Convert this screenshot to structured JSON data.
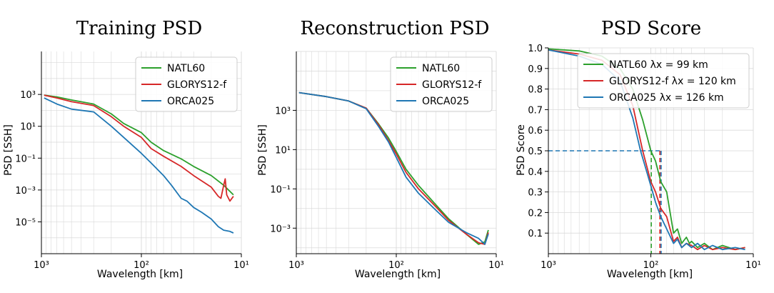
{
  "colors": {
    "natl60": "#2ca02c",
    "glorys": "#d62728",
    "orca": "#1f77b4",
    "grid": "#d9d9d9"
  },
  "chart_data": [
    {
      "type": "line",
      "title": "Training PSD",
      "xlabel": "Wavelength [km]",
      "ylabel": "PSD [SSH]",
      "x_scale": "log-reversed",
      "y_scale": "log",
      "xlim": [
        1000,
        10
      ],
      "ylim": [
        1e-07,
        500000
      ],
      "x_ticks": [
        {
          "v": 1000,
          "t": "10³"
        },
        {
          "v": 100,
          "t": "10²"
        },
        {
          "v": 10,
          "t": "10¹"
        }
      ],
      "y_ticks": [
        {
          "v": 1000,
          "t": "10³"
        },
        {
          "v": 10,
          "t": "10¹"
        },
        {
          "v": 0.1,
          "t": "10⁻¹"
        },
        {
          "v": 0.001,
          "t": "10⁻³"
        },
        {
          "v": 1e-05,
          "t": "10⁻⁵"
        }
      ],
      "grid": true,
      "legend": "top-right",
      "series": [
        {
          "name": "NATL60",
          "color_key": "natl60",
          "x": [
            940,
            700,
            500,
            300,
            200,
            150,
            100,
            80,
            60,
            40,
            30,
            20,
            15,
            12
          ],
          "y": [
            900,
            700,
            450,
            250,
            60,
            15,
            4,
            1,
            0.3,
            0.09,
            0.03,
            0.008,
            0.002,
            0.0005
          ]
        },
        {
          "name": "GLORYS12-f",
          "color_key": "glorys",
          "x": [
            940,
            700,
            500,
            300,
            200,
            150,
            100,
            80,
            60,
            40,
            30,
            20,
            17,
            16,
            15,
            14.5,
            14,
            13,
            12
          ],
          "y": [
            900,
            600,
            350,
            200,
            40,
            10,
            2,
            0.4,
            0.13,
            0.03,
            0.008,
            0.0015,
            0.0004,
            0.0003,
            0.002,
            0.005,
            0.0005,
            0.0002,
            0.0004
          ]
        },
        {
          "name": "ORCA025",
          "color_key": "orca",
          "x": [
            940,
            700,
            500,
            300,
            200,
            150,
            100,
            80,
            60,
            50,
            40,
            35,
            30,
            25,
            20,
            17,
            15,
            13,
            12
          ],
          "y": [
            600,
            250,
            120,
            80,
            10,
            2,
            0.2,
            0.05,
            0.008,
            0.002,
            0.0003,
            0.0002,
            8e-05,
            4e-05,
            1.5e-05,
            5e-06,
            3e-06,
            2.5e-06,
            2e-06
          ]
        }
      ]
    },
    {
      "type": "line",
      "title": "Reconstruction PSD",
      "xlabel": "Wavelength [km]",
      "ylabel": "PSD [SSH]",
      "x_scale": "log-reversed",
      "y_scale": "log",
      "xlim": [
        1000,
        10
      ],
      "ylim": [
        5e-05,
        1000000
      ],
      "x_ticks": [
        {
          "v": 1000,
          "t": "10³"
        },
        {
          "v": 100,
          "t": "10²"
        },
        {
          "v": 10,
          "t": "10¹"
        }
      ],
      "y_ticks": [
        {
          "v": 1000,
          "t": "10³"
        },
        {
          "v": 10,
          "t": "10¹"
        },
        {
          "v": 0.1,
          "t": "10⁻¹"
        },
        {
          "v": 0.001,
          "t": "10⁻³"
        }
      ],
      "grid": true,
      "legend": "top-right",
      "series": [
        {
          "name": "NATL60",
          "color_key": "natl60",
          "x": [
            940,
            500,
            300,
            200,
            150,
            120,
            100,
            80,
            60,
            40,
            30,
            20,
            15,
            13,
            12
          ],
          "y": [
            8000,
            5000,
            3000,
            1300,
            200,
            40,
            8,
            1,
            0.15,
            0.015,
            0.003,
            0.0005,
            0.00015,
            0.0002,
            0.0008
          ]
        },
        {
          "name": "GLORYS12-f",
          "color_key": "glorys",
          "x": [
            940,
            500,
            300,
            200,
            150,
            120,
            100,
            80,
            60,
            40,
            30,
            20,
            15,
            13,
            12
          ],
          "y": [
            8000,
            5000,
            3000,
            1300,
            180,
            30,
            6,
            0.7,
            0.1,
            0.012,
            0.0025,
            0.0005,
            0.00018,
            0.00015,
            0.0006
          ]
        },
        {
          "name": "ORCA025",
          "color_key": "orca",
          "x": [
            940,
            500,
            300,
            200,
            150,
            120,
            100,
            80,
            60,
            40,
            30,
            20,
            15,
            13,
            12
          ],
          "y": [
            8000,
            5000,
            3000,
            1200,
            150,
            25,
            4,
            0.4,
            0.06,
            0.008,
            0.002,
            0.0006,
            0.0003,
            0.00015,
            0.0005
          ]
        }
      ]
    },
    {
      "type": "line",
      "title": "PSD Score",
      "xlabel": "Wavelength [km]",
      "ylabel": "PSD Score",
      "x_scale": "log-reversed",
      "y_scale": "linear",
      "xlim": [
        1000,
        10
      ],
      "ylim": [
        0,
        1
      ],
      "x_ticks": [
        {
          "v": 1000,
          "t": "10³"
        },
        {
          "v": 100,
          "t": "10²"
        },
        {
          "v": 10,
          "t": "10¹"
        }
      ],
      "y_ticks": [
        {
          "v": 0.1,
          "t": "0.1"
        },
        {
          "v": 0.2,
          "t": "0.2"
        },
        {
          "v": 0.3,
          "t": "0.3"
        },
        {
          "v": 0.4,
          "t": "0.4"
        },
        {
          "v": 0.5,
          "t": "0.5"
        },
        {
          "v": 0.6,
          "t": "0.6"
        },
        {
          "v": 0.7,
          "t": "0.7"
        },
        {
          "v": 0.8,
          "t": "0.8"
        },
        {
          "v": 0.9,
          "t": "0.9"
        },
        {
          "v": 1.0,
          "t": "1.0"
        }
      ],
      "grid": true,
      "legend": "top-right",
      "threshold": 0.5,
      "series": [
        {
          "name": "NATL60",
          "resolution_label": "λx = 99 km",
          "resolution": 99,
          "color_key": "natl60",
          "x": [
            1000,
            500,
            300,
            200,
            150,
            120,
            100,
            90,
            80,
            70,
            60,
            55,
            50,
            45,
            42,
            40,
            35,
            30,
            25,
            20,
            15,
            12
          ],
          "y": [
            0.995,
            0.985,
            0.96,
            0.9,
            0.8,
            0.65,
            0.5,
            0.45,
            0.35,
            0.3,
            0.1,
            0.12,
            0.05,
            0.08,
            0.05,
            0.06,
            0.03,
            0.05,
            0.02,
            0.04,
            0.02,
            0.03
          ]
        },
        {
          "name": "GLORYS12-f",
          "resolution_label": "λx = 120 km",
          "resolution": 120,
          "color_key": "glorys",
          "x": [
            1000,
            500,
            300,
            200,
            150,
            120,
            100,
            90,
            80,
            70,
            60,
            55,
            50,
            45,
            40,
            35,
            30,
            25,
            20,
            15,
            12
          ],
          "y": [
            0.99,
            0.97,
            0.94,
            0.87,
            0.72,
            0.5,
            0.35,
            0.3,
            0.22,
            0.18,
            0.06,
            0.08,
            0.03,
            0.05,
            0.04,
            0.02,
            0.04,
            0.02,
            0.03,
            0.02,
            0.03
          ]
        },
        {
          "name": "ORCA025",
          "resolution_label": "λx = 126 km",
          "resolution": 126,
          "color_key": "orca",
          "x": [
            1000,
            500,
            300,
            200,
            150,
            126,
            110,
            100,
            90,
            80,
            70,
            60,
            55,
            50,
            45,
            40,
            35,
            30,
            25,
            20,
            15,
            12
          ],
          "y": [
            0.99,
            0.96,
            0.92,
            0.84,
            0.66,
            0.5,
            0.4,
            0.33,
            0.25,
            0.18,
            0.12,
            0.05,
            0.07,
            0.03,
            0.05,
            0.03,
            0.05,
            0.02,
            0.04,
            0.02,
            0.03,
            0.02
          ]
        }
      ]
    }
  ]
}
